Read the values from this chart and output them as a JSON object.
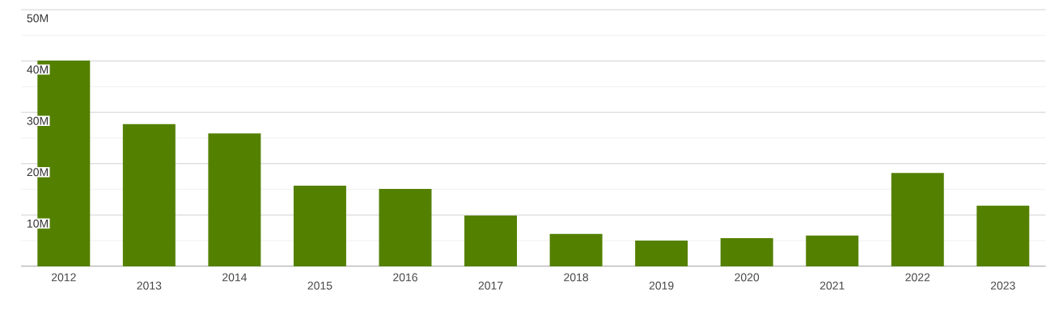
{
  "chart_data": {
    "type": "bar",
    "categories": [
      "2012",
      "2013",
      "2014",
      "2015",
      "2016",
      "2017",
      "2018",
      "2019",
      "2020",
      "2021",
      "2022",
      "2023"
    ],
    "values": [
      40100000,
      27700000,
      25900000,
      15700000,
      15100000,
      9900000,
      6300000,
      5000000,
      5500000,
      6000000,
      18200000,
      11800000
    ],
    "color": "#548000",
    "ylim": [
      0,
      50000000
    ],
    "yticks": [
      {
        "value": 0,
        "label": null
      },
      {
        "value": 5000000,
        "label": null
      },
      {
        "value": 10000000,
        "label": "10M"
      },
      {
        "value": 15000000,
        "label": null
      },
      {
        "value": 20000000,
        "label": "20M"
      },
      {
        "value": 25000000,
        "label": null
      },
      {
        "value": 30000000,
        "label": "30M"
      },
      {
        "value": 35000000,
        "label": null
      },
      {
        "value": 40000000,
        "label": "40M"
      },
      {
        "value": 45000000,
        "label": null
      },
      {
        "value": 50000000,
        "label": "50M"
      }
    ],
    "grid": "y"
  }
}
